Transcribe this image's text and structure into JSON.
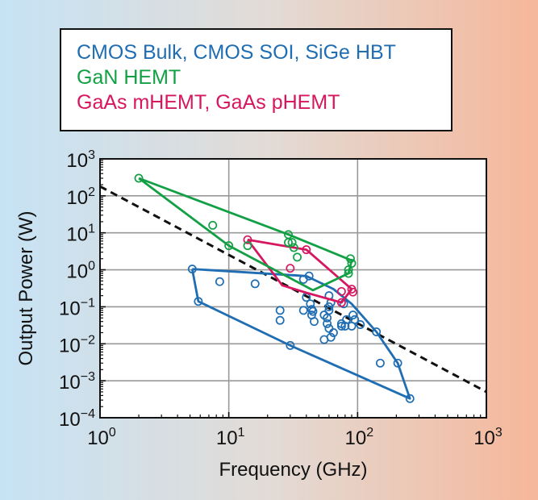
{
  "chart_data": {
    "type": "scatter",
    "xscale": "log",
    "yscale": "log",
    "xlim": [
      1,
      1000
    ],
    "ylim": [
      0.0001,
      1000
    ],
    "xlabel": "Frequency (GHz)",
    "ylabel": "Output Power (W)",
    "grid": true,
    "legend_position": "top",
    "xticks": [
      {
        "base": "10",
        "exp": "0",
        "value": 1
      },
      {
        "base": "10",
        "exp": "1",
        "value": 10
      },
      {
        "base": "10",
        "exp": "2",
        "value": 100
      },
      {
        "base": "10",
        "exp": "3",
        "value": 1000
      }
    ],
    "yticks": [
      {
        "base": "10",
        "exp": "3",
        "value": 1000
      },
      {
        "base": "10",
        "exp": "2",
        "value": 100
      },
      {
        "base": "10",
        "exp": "1",
        "value": 10
      },
      {
        "base": "10",
        "exp": "0",
        "value": 1
      },
      {
        "base": "10",
        "exp": "−1",
        "value": 0.1
      },
      {
        "base": "10",
        "exp": "−2",
        "value": 0.01
      },
      {
        "base": "10",
        "exp": "−3",
        "value": 0.001
      },
      {
        "base": "10",
        "exp": "−4",
        "value": 0.0001
      }
    ],
    "trend_line": {
      "style": "dashed",
      "color": "#111111",
      "points": [
        [
          1,
          180
        ],
        [
          1000,
          0.0005
        ]
      ]
    },
    "series": [
      {
        "name": "CMOS Bulk, CMOS SOI, SiGe HBT",
        "color": "#1f6db2",
        "points": [
          [
            5.2,
            1.05
          ],
          [
            5.8,
            0.14
          ],
          [
            8.5,
            0.48
          ],
          [
            16,
            0.42
          ],
          [
            25,
            0.08
          ],
          [
            25,
            0.043
          ],
          [
            30,
            0.009
          ],
          [
            38,
            0.55
          ],
          [
            38,
            0.08
          ],
          [
            40,
            0.18
          ],
          [
            42,
            0.68
          ],
          [
            43,
            0.12
          ],
          [
            44,
            0.085
          ],
          [
            44,
            0.06
          ],
          [
            45,
            0.075
          ],
          [
            46,
            0.04
          ],
          [
            55,
            0.06
          ],
          [
            55,
            0.013
          ],
          [
            58,
            0.05
          ],
          [
            58,
            0.035
          ],
          [
            60,
            0.2
          ],
          [
            60,
            0.1
          ],
          [
            60,
            0.08
          ],
          [
            60,
            0.026
          ],
          [
            62,
            0.13
          ],
          [
            62,
            0.015
          ],
          [
            65,
            0.02
          ],
          [
            75,
            0.035
          ],
          [
            75,
            0.03
          ],
          [
            78,
            0.12
          ],
          [
            80,
            0.03
          ],
          [
            82,
            0.045
          ],
          [
            90,
            0.03
          ],
          [
            92,
            0.06
          ],
          [
            95,
            0.045
          ],
          [
            105,
            0.033
          ],
          [
            140,
            0.021
          ],
          [
            150,
            0.003
          ],
          [
            205,
            0.003
          ],
          [
            255,
            0.00033
          ]
        ],
        "envelope": [
          [
            5.2,
            1.05
          ],
          [
            40,
            0.68
          ],
          [
            65,
            0.3
          ],
          [
            90,
            0.12
          ],
          [
            140,
            0.021
          ],
          [
            205,
            0.003
          ],
          [
            255,
            0.00033
          ],
          [
            30,
            0.009
          ],
          [
            5.8,
            0.14
          ],
          [
            5.2,
            1.05
          ]
        ]
      },
      {
        "name": "GaN HEMT",
        "color": "#13a045",
        "points": [
          [
            2,
            300
          ],
          [
            7.5,
            16
          ],
          [
            10,
            4.5
          ],
          [
            14,
            4.5
          ],
          [
            29,
            9
          ],
          [
            29,
            5.5
          ],
          [
            31,
            5.5
          ],
          [
            32,
            4
          ],
          [
            34,
            2.2
          ],
          [
            85,
            0.8
          ],
          [
            85,
            1.0
          ],
          [
            88,
            2.0
          ],
          [
            90,
            1.5
          ]
        ],
        "envelope": [
          [
            2,
            300
          ],
          [
            29,
            9
          ],
          [
            90,
            1.8
          ],
          [
            85,
            0.8
          ],
          [
            45,
            0.28
          ],
          [
            10,
            4.5
          ],
          [
            2,
            300
          ]
        ]
      },
      {
        "name": "GaAs mHEMT, GaAs pHEMT",
        "color": "#d6175f",
        "points": [
          [
            14,
            6.5
          ],
          [
            30,
            1.1
          ],
          [
            40,
            3.5
          ],
          [
            75,
            0.13
          ],
          [
            75,
            0.26
          ],
          [
            90,
            0.3
          ],
          [
            92,
            0.25
          ]
        ],
        "envelope": [
          [
            14,
            6.5
          ],
          [
            40,
            3.5
          ],
          [
            90,
            0.3
          ],
          [
            75,
            0.13
          ],
          [
            40,
            0.24
          ],
          [
            26,
            0.38
          ],
          [
            14,
            6.5
          ]
        ]
      }
    ]
  }
}
